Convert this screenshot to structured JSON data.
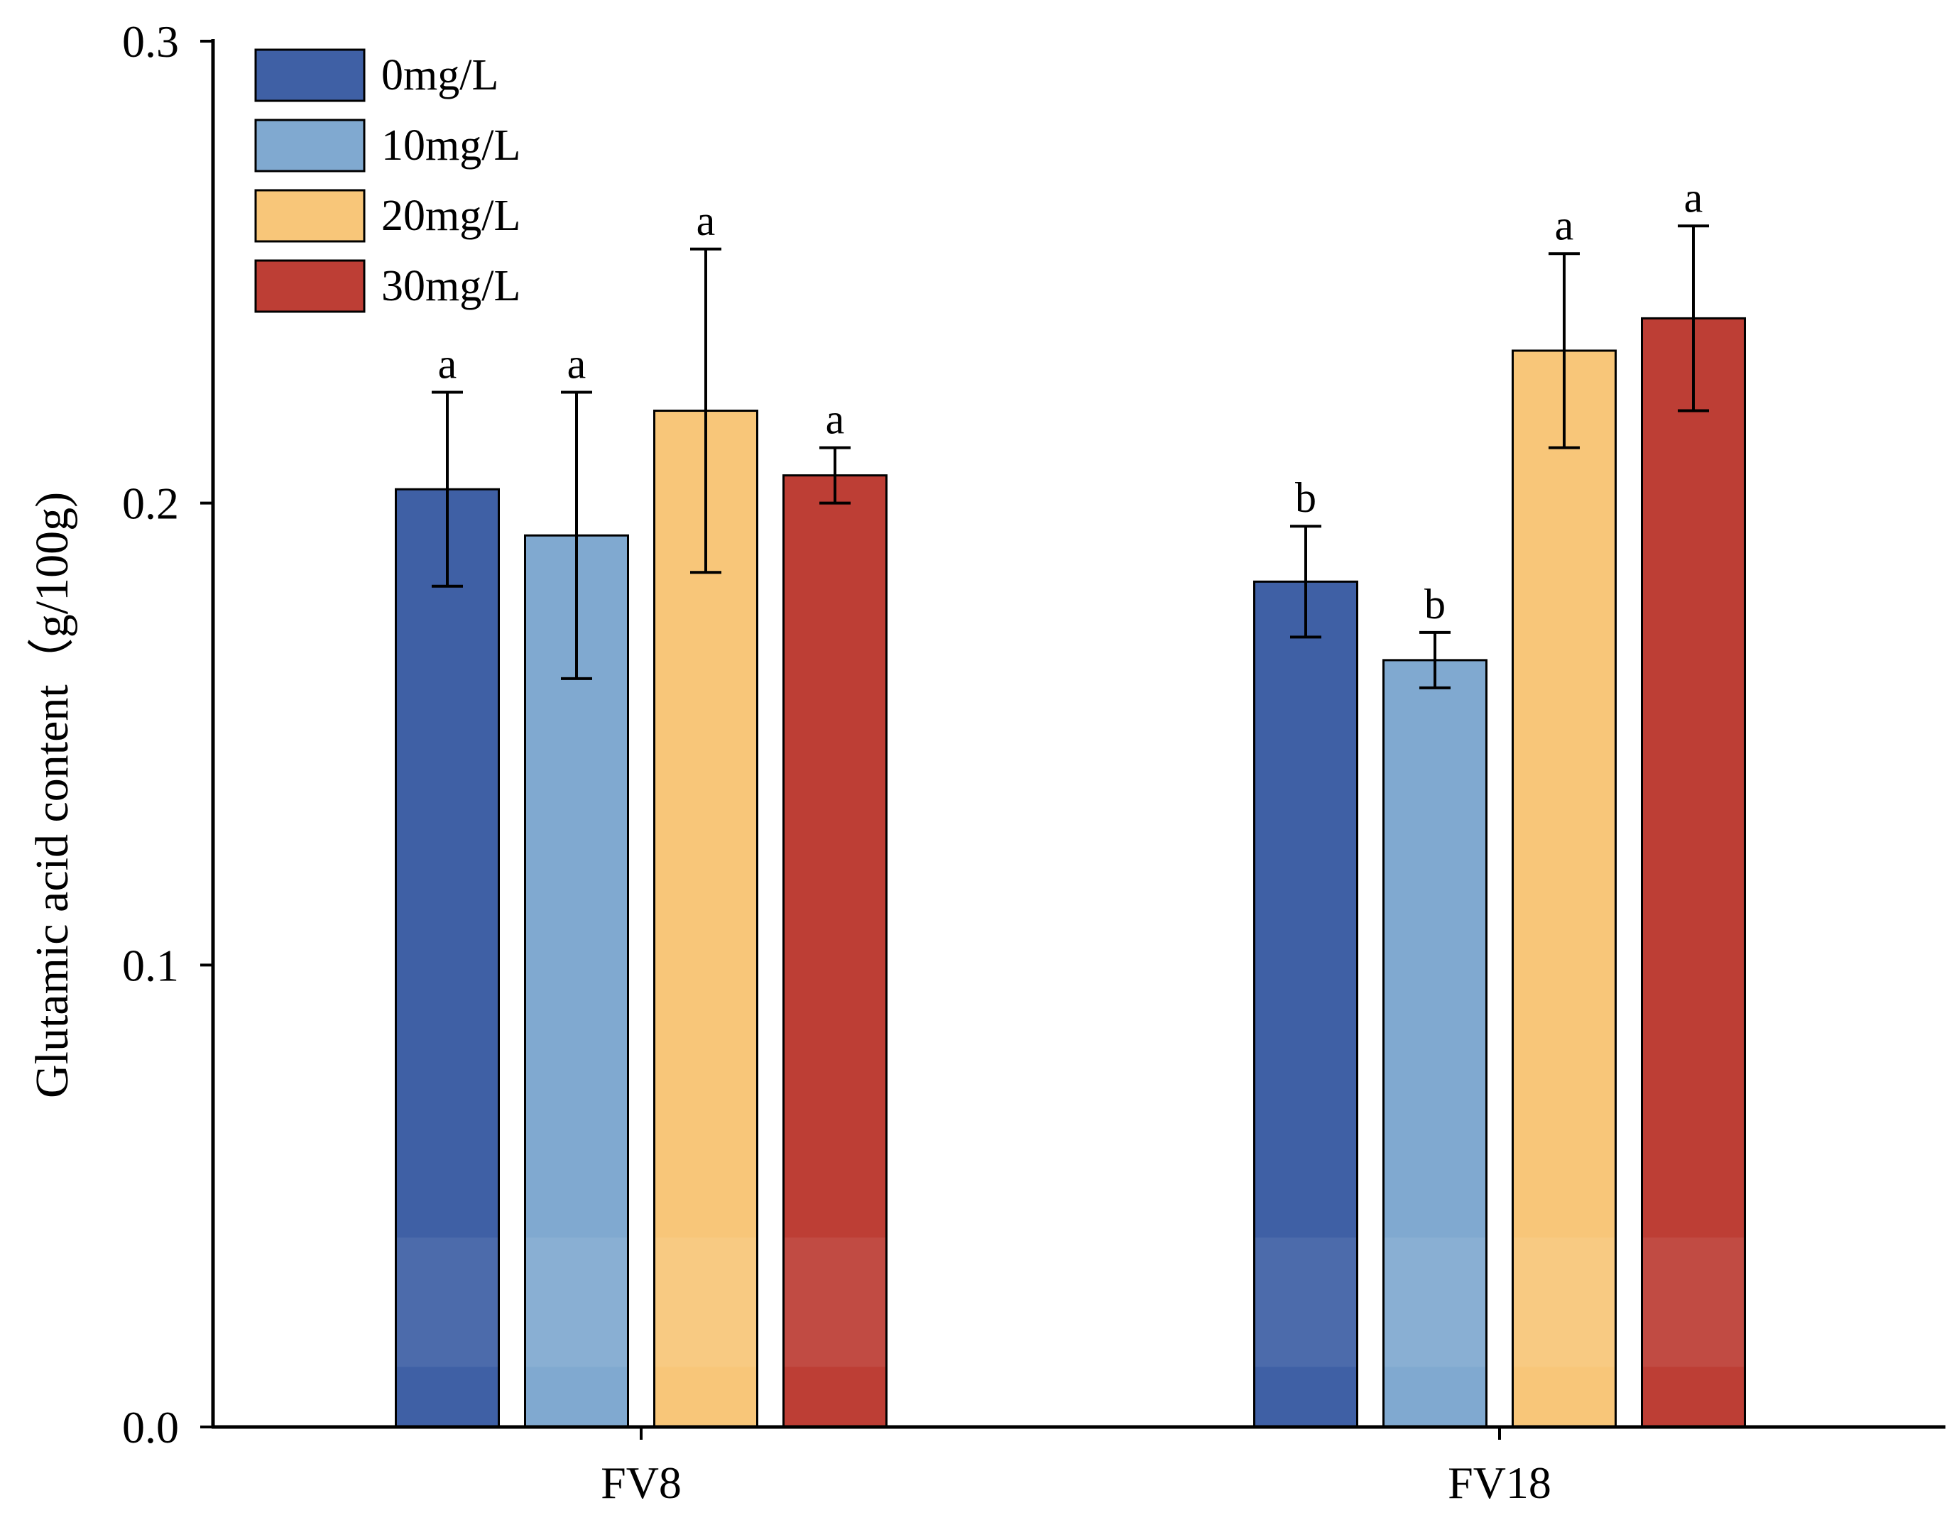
{
  "chart_data": {
    "type": "bar",
    "title": "",
    "xlabel": "",
    "ylabel": "Glutamic acid content（g/100g)",
    "ylim": [
      0,
      0.3
    ],
    "yticks": [
      0.0,
      0.1,
      0.2,
      0.3
    ],
    "ytick_labels": [
      "0.0",
      "0.1",
      "0.2",
      "0.3"
    ],
    "categories": [
      "FV8",
      "FV18"
    ],
    "legend_position": "top-left",
    "series": [
      {
        "name": "0mg/L",
        "color": "#3F60A5",
        "values": [
          0.203,
          0.183
        ],
        "errors": [
          0.021,
          0.012
        ],
        "labels": [
          "a",
          "b"
        ]
      },
      {
        "name": "10mg/L",
        "color": "#80A9D0",
        "values": [
          0.193,
          0.166
        ],
        "errors": [
          0.031,
          0.006
        ],
        "labels": [
          "a",
          "b"
        ]
      },
      {
        "name": "20mg/L",
        "color": "#F8C679",
        "values": [
          0.22,
          0.233
        ],
        "errors": [
          0.035,
          0.021
        ],
        "labels": [
          "a",
          "a"
        ]
      },
      {
        "name": "30mg/L",
        "color": "#BD3E35",
        "values": [
          0.206,
          0.24
        ],
        "errors": [
          0.006,
          0.02
        ],
        "labels": [
          "a",
          "a"
        ]
      }
    ]
  }
}
